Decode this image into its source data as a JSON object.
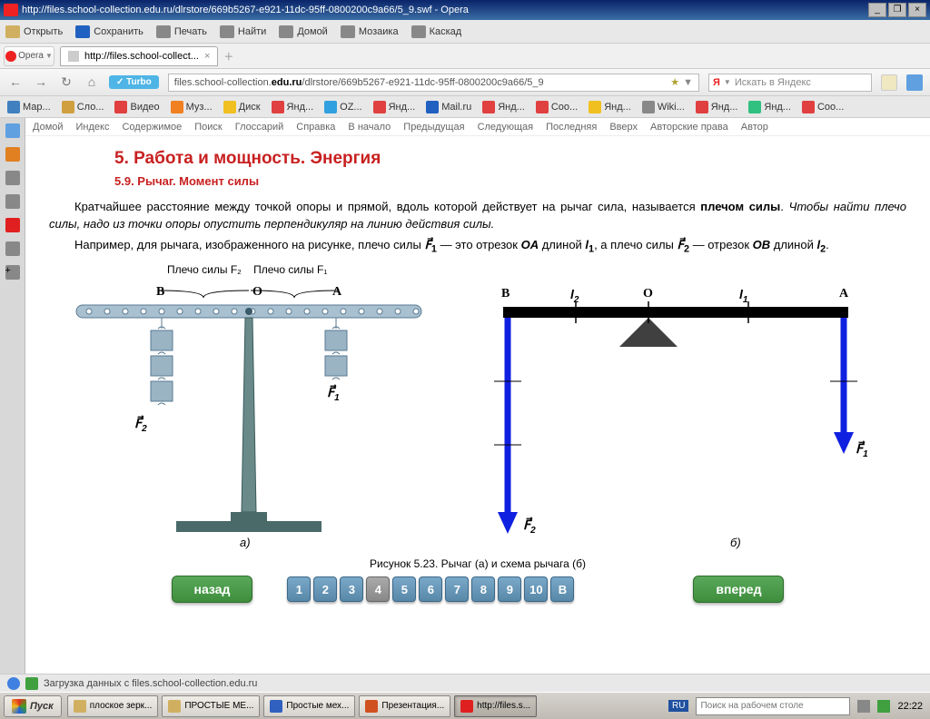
{
  "window": {
    "title": "http://files.school-collection.edu.ru/dlrstore/669b5267-e921-11dc-95ff-0800200c9a66/5_9.swf - Opera"
  },
  "toolbar": {
    "open": "Открыть",
    "save": "Сохранить",
    "print": "Печать",
    "find": "Найти",
    "home": "Домой",
    "mosaic": "Мозаика",
    "cascade": "Каскад"
  },
  "tabs": {
    "opera": "Opera",
    "tab1": "http://files.school-collect..."
  },
  "address": {
    "turbo": "Turbo",
    "pre": "files.school-collection.",
    "domain": "edu.ru",
    "post": "/dlrstore/669b5267-e921-11dc-95ff-0800200c9a66/5_9",
    "search_placeholder": "Искать в Яндекс",
    "ya": "Я"
  },
  "bookmarks": [
    {
      "label": "Мар...",
      "color": "#4080c0"
    },
    {
      "label": "Сло...",
      "color": "#d0a040"
    },
    {
      "label": "Видео",
      "color": "#e04040"
    },
    {
      "label": "Муз...",
      "color": "#f08020"
    },
    {
      "label": "Диск",
      "color": "#f0c020"
    },
    {
      "label": "Янд...",
      "color": "#e04040"
    },
    {
      "label": "OZ...",
      "color": "#30a0e0"
    },
    {
      "label": "Янд...",
      "color": "#e04040"
    },
    {
      "label": "Mail.ru",
      "color": "#2060c0"
    },
    {
      "label": "Янд...",
      "color": "#e04040"
    },
    {
      "label": "Coo...",
      "color": "#e04040"
    },
    {
      "label": "Янд...",
      "color": "#f0c020"
    },
    {
      "label": "Wiki...",
      "color": "#888"
    },
    {
      "label": "Янд...",
      "color": "#e04040"
    },
    {
      "label": "Янд...",
      "color": "#30c080"
    },
    {
      "label": "Coo...",
      "color": "#e04040"
    }
  ],
  "subnav": [
    "Домой",
    "Индекс",
    "Содержимое",
    "Поиск",
    "Глоссарий",
    "Справка",
    "В начало",
    "Предыдущая",
    "Следующая",
    "Последняя",
    "Вверх",
    "Авторские права",
    "Автор"
  ],
  "page": {
    "h1": "5. Работа и мощность. Энергия",
    "h2": "5.9. Рычаг. Момент силы",
    "p1a": "Кратчайшее расстояние между точкой опоры и прямой, вдоль которой действует на рычаг сила, называется ",
    "p1b": "плечом силы",
    "p1c": ". ",
    "p1i": "Чтобы найти плечо силы, надо из точки опоры опустить перпендикуляр на линию действия силы.",
    "p2a": "Например, для рычага, изображенного на рисунке, плечо силы ",
    "p2b": " — это отрезок ",
    "p2c": " длиной ",
    "p2d": ", а плечо силы ",
    "p2e": " — отрезок ",
    "p2f": " длиной ",
    "caption": "Рисунок 5.23. Рычаг (а) и схема рычага (б)",
    "labels": {
      "arm2": "Плечо силы F₂",
      "arm1": "Плечо силы F₁",
      "B": "B",
      "O": "O",
      "A": "A",
      "F1": "F₁",
      "F2": "F₂",
      "l1": "l₁",
      "l2": "l₂",
      "a": "а)",
      "b": "б)"
    },
    "nav": {
      "back": "назад",
      "forward": "вперед",
      "pages": [
        "1",
        "2",
        "3",
        "4",
        "5",
        "6",
        "7",
        "8",
        "9",
        "10",
        "В"
      ],
      "active": 3
    }
  },
  "diagram": {
    "lever_color": "#7a9db8",
    "weight_color": "#86a4b8",
    "stand_color": "#4a6a6a",
    "arrow_color": "#1020e0",
    "bar_color": "#000000"
  },
  "status": {
    "text": "Загрузка данных с files.school-collection.edu.ru"
  },
  "taskbar": {
    "start": "Пуск",
    "items": [
      {
        "label": "плоское зерк...",
        "color": "#d0b060"
      },
      {
        "label": "ПРОСТЫЕ МЕ...",
        "color": "#d0b060"
      },
      {
        "label": "Простые мех...",
        "color": "#3060c0"
      },
      {
        "label": "Презентация...",
        "color": "#d05020"
      },
      {
        "label": "http://files.s...",
        "color": "#e02020",
        "active": true
      }
    ],
    "lang": "RU",
    "desksearch": "Поиск на рабочем столе",
    "clock": "22:22"
  }
}
